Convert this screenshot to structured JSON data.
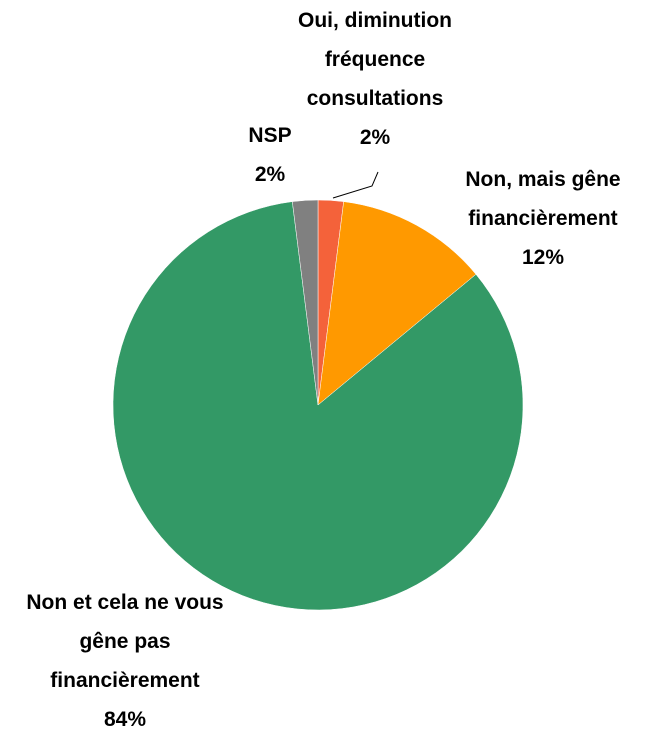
{
  "chart_data": {
    "type": "pie",
    "categories": [
      "Oui, diminution fréquence consultations",
      "Non, mais gêne financièrement",
      "Non et cela ne vous gêne pas financièrement",
      "NSP"
    ],
    "values": [
      2,
      12,
      84,
      2
    ],
    "value_labels": [
      "2%",
      "12%",
      "84%",
      "2%"
    ],
    "colors": [
      "#f4623a",
      "#ff9900",
      "#339966",
      "#808080"
    ]
  }
}
